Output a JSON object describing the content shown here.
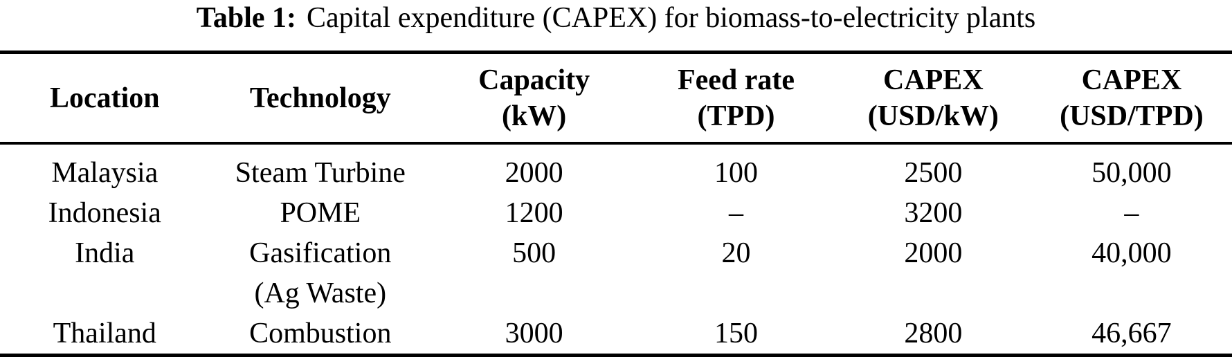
{
  "caption": {
    "label": "Table 1:",
    "text": "Capital expenditure (CAPEX) for biomass-to-electricity plants"
  },
  "chart_data": {
    "type": "table",
    "title": "Table 1: Capital expenditure (CAPEX) for biomass-to-electricity plants",
    "columns": [
      {
        "name": "Location",
        "unit": ""
      },
      {
        "name": "Technology",
        "unit": ""
      },
      {
        "name": "Capacity",
        "unit": "(kW)"
      },
      {
        "name": "Feed rate",
        "unit": "(TPD)"
      },
      {
        "name": "CAPEX",
        "unit": "(USD/kW)"
      },
      {
        "name": "CAPEX",
        "unit": "(USD/TPD)"
      }
    ],
    "rows": [
      {
        "cells": [
          "Malaysia",
          "Steam Turbine",
          "2000",
          "100",
          "2500",
          "50,000"
        ],
        "technology_note": ""
      },
      {
        "cells": [
          "Indonesia",
          "POME",
          "1200",
          "–",
          "3200",
          "–"
        ],
        "technology_note": ""
      },
      {
        "cells": [
          "India",
          "Gasification",
          "500",
          "20",
          "2000",
          "40,000"
        ],
        "technology_note": "(Ag Waste)"
      },
      {
        "cells": [
          "Thailand",
          "Combustion",
          "3000",
          "150",
          "2800",
          "46,667"
        ],
        "technology_note": ""
      }
    ]
  },
  "colors": {
    "text": "#000000",
    "background": "#ffffff",
    "rule": "#000000"
  }
}
